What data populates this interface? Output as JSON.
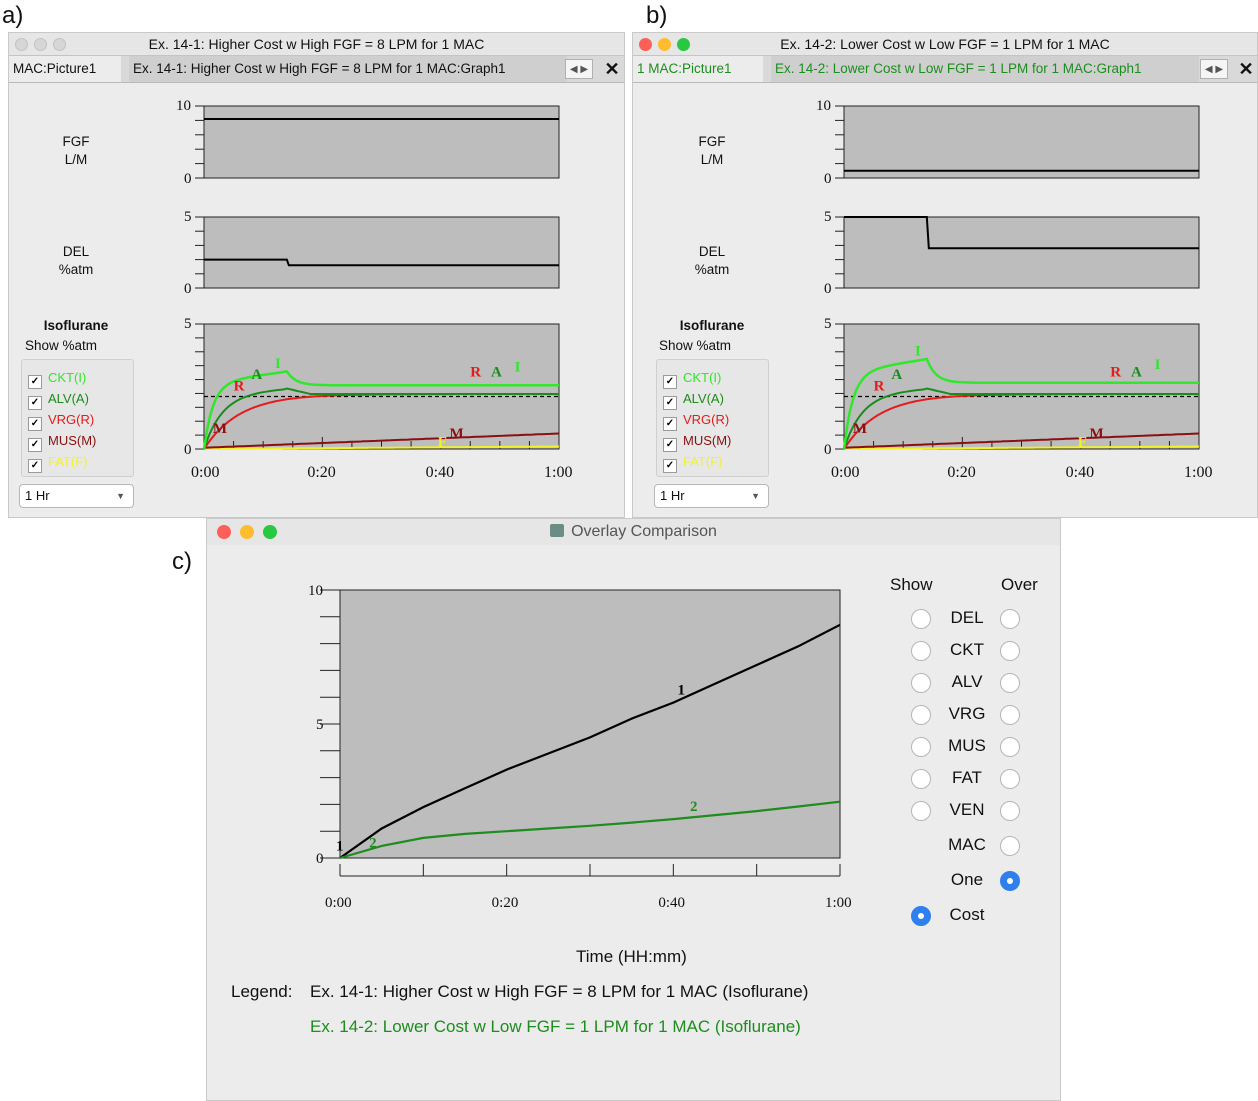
{
  "panel_labels": {
    "a": "a)",
    "b": "b)",
    "c": "c)"
  },
  "win_a": {
    "title": "Ex. 14-1: Higher Cost w High FGF = 8 LPM for 1 MAC",
    "tab_inactive": "MAC:Picture1",
    "tab_active": "Ex. 14-1: Higher Cost w High FGF = 8 LPM for 1 MAC:Graph1",
    "close": "✕",
    "fgf_label": [
      "FGF",
      "L/M"
    ],
    "fgf_ticks": [
      "10",
      "0"
    ],
    "fgf_value": 8.2,
    "del_label": [
      "DEL",
      "%atm"
    ],
    "del_ticks": [
      "5",
      "0"
    ],
    "del_values": {
      "before": 2.0,
      "after": 1.6,
      "switch_min": 14
    },
    "agent": "Isoflurane",
    "show": "Show %atm",
    "conc_ticks": [
      "5",
      "0"
    ],
    "time_ticks": [
      "0:00",
      "0:20",
      "0:40",
      "1:00"
    ],
    "dropdown": "1 Hr",
    "levels": {
      "ckt": 2.55,
      "alv": 2.2,
      "vrg": 2.2,
      "mus": 0.6,
      "fat": 0.1,
      "peak": 3.1,
      "mac": 2.1
    }
  },
  "win_b": {
    "title": "Ex. 14-2: Lower Cost w Low FGF = 1 LPM for 1 MAC",
    "tab_inactive": "1 MAC:Picture1",
    "tab_active": "Ex. 14-2: Lower Cost w Low FGF = 1 LPM for 1 MAC:Graph1",
    "close": "✕",
    "fgf_label": [
      "FGF",
      "L/M"
    ],
    "fgf_ticks": [
      "10",
      "0"
    ],
    "fgf_value": 1.0,
    "del_label": [
      "DEL",
      "%atm"
    ],
    "del_ticks": [
      "5",
      "0"
    ],
    "del_values": {
      "before": 5.0,
      "after": 2.8,
      "switch_min": 14
    },
    "agent": "Isoflurane",
    "show": "Show %atm",
    "conc_ticks": [
      "5",
      "0"
    ],
    "time_ticks": [
      "0:00",
      "0:20",
      "0:40",
      "1:00"
    ],
    "dropdown": "1 Hr",
    "levels": {
      "ckt": 2.65,
      "alv": 2.2,
      "vrg": 2.2,
      "mus": 0.6,
      "fat": 0.1,
      "peak": 3.6,
      "mac": 2.1
    }
  },
  "checkboxes": [
    {
      "label": "CKT(I)",
      "color": "#31e62b",
      "checked": "✓"
    },
    {
      "label": "ALV(A)",
      "color": "#1a8c1a",
      "checked": "✓"
    },
    {
      "label": "VRG(R)",
      "color": "#e31b1b",
      "checked": "✓"
    },
    {
      "label": "MUS(M)",
      "color": "#8a1010",
      "checked": "✓"
    },
    {
      "label": "FAT(F)",
      "color": "#f2f22a",
      "checked": "✓"
    }
  ],
  "curve_letters": {
    "ckt": "I",
    "alv": "A",
    "vrg": "R",
    "mus": "M",
    "fat": "F"
  },
  "overlay": {
    "title": "Overlay Comparison",
    "show_header": "Show",
    "over_header": "Over",
    "rows": [
      {
        "label": "DEL",
        "show": "off",
        "over": "off"
      },
      {
        "label": "CKT",
        "show": "off",
        "over": "off"
      },
      {
        "label": "ALV",
        "show": "off",
        "over": "off"
      },
      {
        "label": "VRG",
        "show": "off",
        "over": "off"
      },
      {
        "label": "MUS",
        "show": "off",
        "over": "off"
      },
      {
        "label": "FAT",
        "show": "off",
        "over": "off"
      },
      {
        "label": "VEN",
        "show": "off",
        "over": "off"
      },
      {
        "label": "MAC",
        "show": "none",
        "over": "off"
      },
      {
        "label": "One",
        "show": "none",
        "over": "on"
      },
      {
        "label": "Cost",
        "show": "on",
        "over": "none"
      }
    ],
    "xlabel": "Time (HH:mm)",
    "legend_label": "Legend:",
    "legend_1": "Ex. 14-1: Higher Cost w High FGF = 8 LPM for 1 MAC (Isoflurane)",
    "legend_2": "Ex. 14-2: Lower Cost w Low FGF = 1 LPM for 1 MAC (Isoflurane)",
    "legend_2_color": "#1e8c1e"
  },
  "chart_data": {
    "type": "line",
    "title": "",
    "xlabel": "Time (HH:mm)",
    "ylabel": "",
    "x_ticks": [
      "0:00",
      "0:20",
      "0:40",
      "1:00"
    ],
    "y_ticks": [
      "10",
      "5",
      "0"
    ],
    "xlim": [
      0,
      60
    ],
    "ylim": [
      0,
      10
    ],
    "grid": false,
    "series": [
      {
        "name": "1",
        "color": "#000000",
        "x": [
          0,
          5,
          10,
          15,
          20,
          25,
          30,
          35,
          40,
          45,
          50,
          55,
          60
        ],
        "values": [
          0,
          1.1,
          1.9,
          2.6,
          3.3,
          3.9,
          4.5,
          5.2,
          5.8,
          6.5,
          7.2,
          7.9,
          8.7
        ]
      },
      {
        "name": "2",
        "color": "#1e8c1e",
        "x": [
          0,
          5,
          10,
          15,
          20,
          25,
          30,
          35,
          40,
          45,
          50,
          55,
          60
        ],
        "values": [
          0,
          0.45,
          0.75,
          0.9,
          1.0,
          1.1,
          1.2,
          1.32,
          1.45,
          1.6,
          1.75,
          1.92,
          2.1
        ]
      }
    ]
  }
}
